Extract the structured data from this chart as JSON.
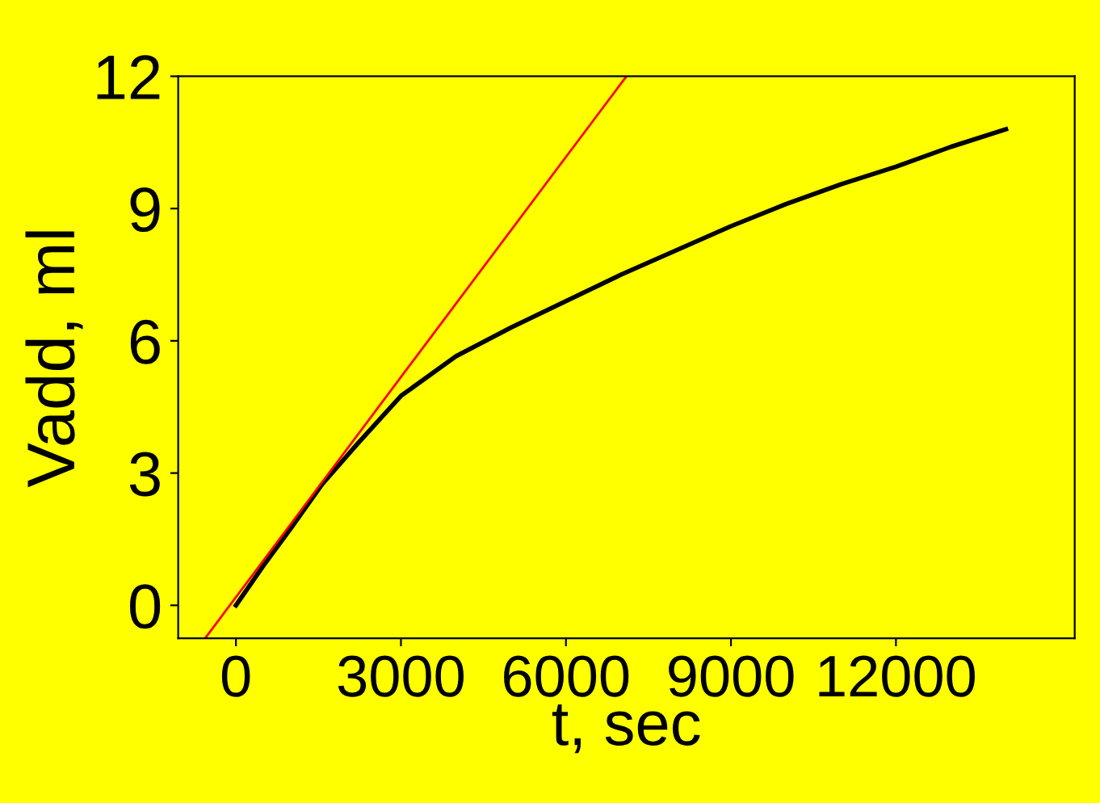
{
  "chart_data": {
    "type": "line",
    "xlabel": "t, sec",
    "ylabel": "Vadd, ml",
    "xlim": [
      -1050,
      15250
    ],
    "ylim": [
      -0.75,
      12
    ],
    "xticks": [
      0,
      3000,
      6000,
      9000,
      12000
    ],
    "yticks": [
      0,
      3,
      6,
      9,
      12
    ],
    "grid": false,
    "legend": false,
    "series": [
      {
        "color": "#000000",
        "x": [
          0,
          500,
          1000,
          1570,
          2200,
          3000,
          4000,
          5000,
          6000,
          7000,
          8000,
          9000,
          10000,
          11000,
          12000,
          13000,
          14000
        ],
        "values": [
          0,
          0.9,
          1.75,
          2.75,
          3.65,
          4.75,
          5.65,
          6.3,
          6.9,
          7.5,
          8.05,
          8.6,
          9.1,
          9.55,
          9.95,
          10.4,
          10.8
        ]
      },
      {
        "color": "#ff0000",
        "x": [
          -550,
          7100
        ],
        "values": [
          -0.73,
          12
        ]
      }
    ]
  }
}
